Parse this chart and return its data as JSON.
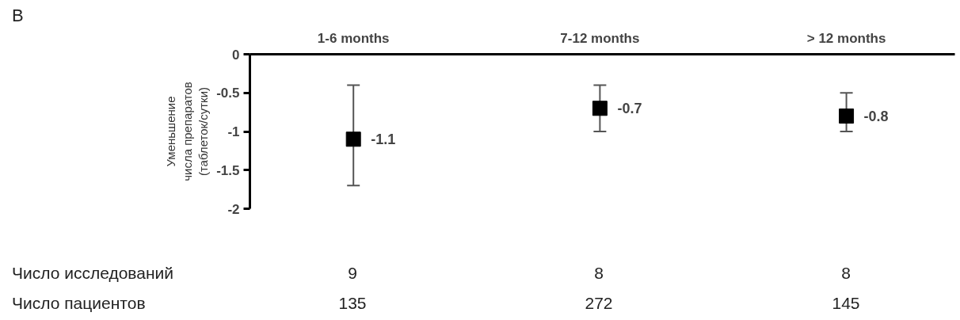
{
  "chart_data": {
    "type": "scatter",
    "ylabel": "Уменьшение\nчисла препаратов\n(таблеток/сутки)",
    "categories": [
      "1-6 months",
      "7-12 months",
      "> 12 months"
    ],
    "values": [
      -1.1,
      -0.7,
      -0.8
    ],
    "errors": [
      [
        -1.7,
        -0.4
      ],
      [
        -1.0,
        -0.4
      ],
      [
        -1.0,
        -0.5
      ]
    ],
    "color": "#000000",
    "marker": "square",
    "data_labels": true,
    "ylim": [
      -2,
      0
    ],
    "yticks": [
      {
        "value": 0,
        "label": "0"
      },
      -0.5,
      -1,
      -1.5,
      -2
    ],
    "grid": false,
    "annotations": [
      "B",
      "Число исследований",
      "9",
      "8",
      "8",
      "Число пациентов",
      "135",
      "272",
      "145"
    ]
  }
}
